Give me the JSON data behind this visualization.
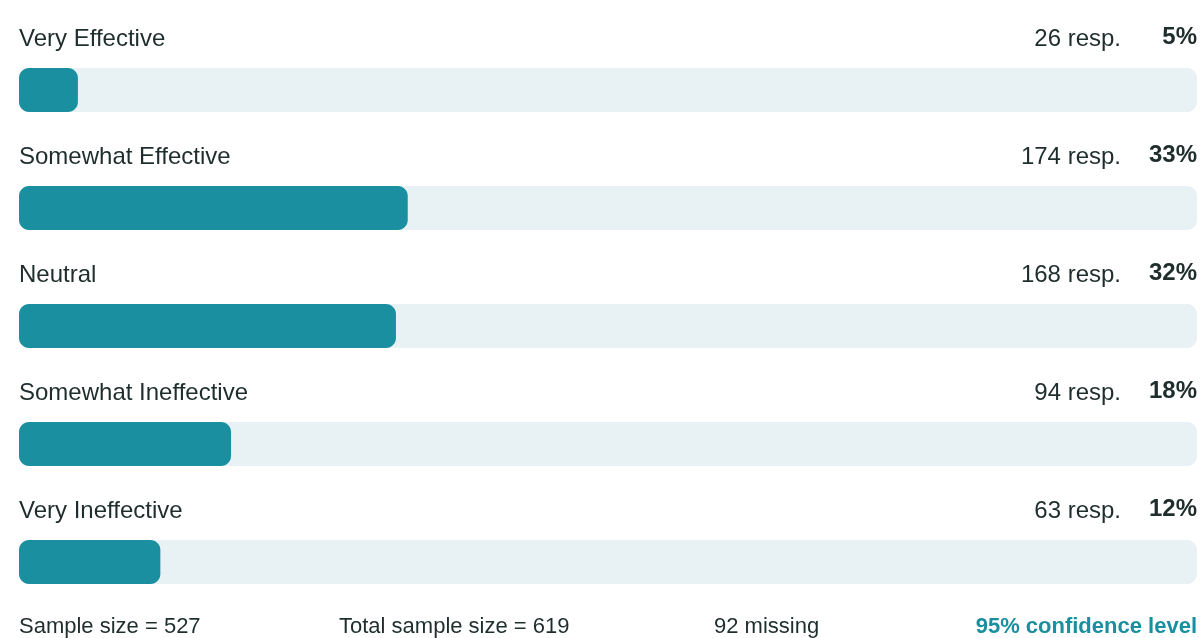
{
  "chart_data": {
    "type": "bar",
    "orientation": "horizontal",
    "categories": [
      "Very Effective",
      "Somewhat Effective",
      "Neutral",
      "Somewhat Ineffective",
      "Very Ineffective"
    ],
    "values": [
      5,
      33,
      32,
      18,
      12
    ],
    "value_labels": [
      "5%",
      "33%",
      "32%",
      "18%",
      "12%"
    ],
    "color": "#1a8fa0",
    "xlim": [
      0,
      100
    ],
    "annotations": [
      "26 resp.",
      "174 resp.",
      "168 resp.",
      "94 resp.",
      "63 resp.",
      "Sample size = 527",
      "Total sample size = 619",
      "92 missing",
      "95% confidence level"
    ]
  }
}
